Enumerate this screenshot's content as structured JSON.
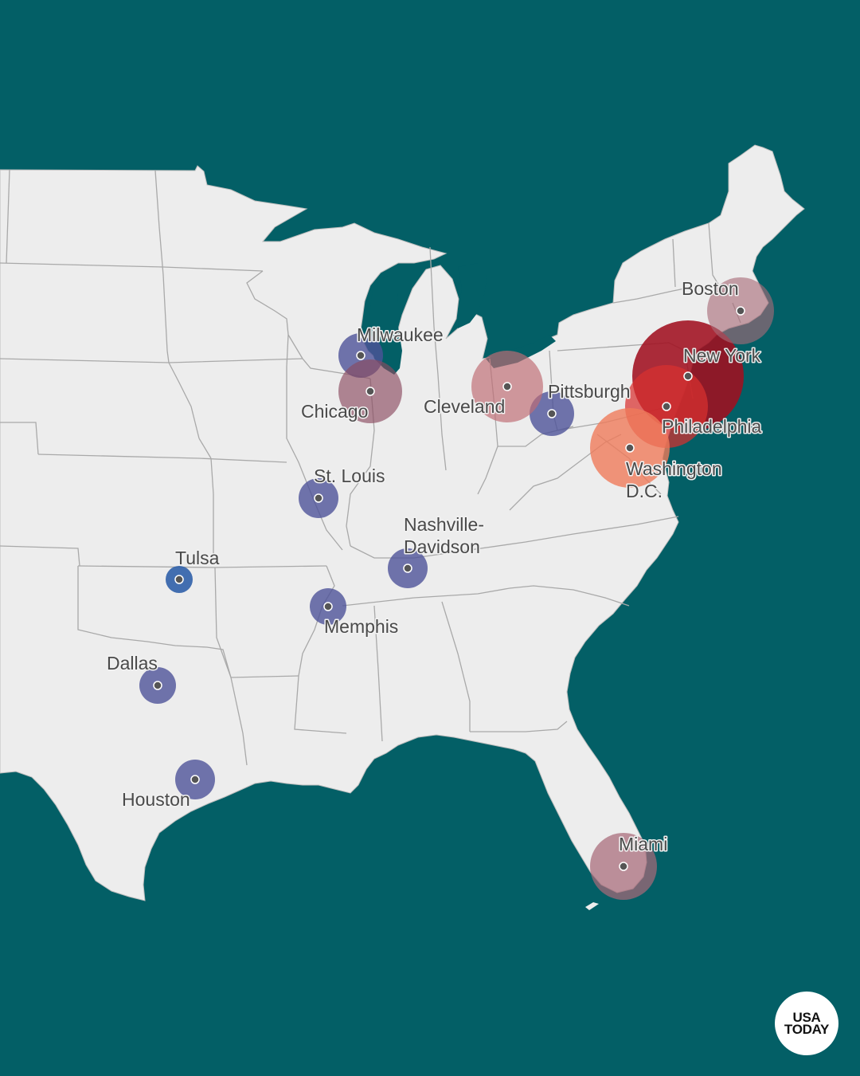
{
  "colors": {
    "water": "#035f66",
    "land": "#ededed",
    "border": "#a9a9a9",
    "blue_marker": "#5a5f9e",
    "mauve_marker": "#a86a78",
    "dark_red_marker": "#a01020",
    "orange_marker": "#ef7a5a"
  },
  "cities": [
    {
      "name": "Boston",
      "tone": "mauve"
    },
    {
      "name": "New York",
      "tone": "dark-red"
    },
    {
      "name": "Philadelphia",
      "tone": "red-orange"
    },
    {
      "name": "Washington D.C.",
      "line1": "Washington",
      "line2": "D.C.",
      "tone": "orange"
    },
    {
      "name": "Pittsburgh",
      "tone": "blue"
    },
    {
      "name": "Cleveland",
      "tone": "mauve"
    },
    {
      "name": "Milwaukee",
      "tone": "blue"
    },
    {
      "name": "Chicago",
      "tone": "mauve"
    },
    {
      "name": "St. Louis",
      "tone": "blue"
    },
    {
      "name": "Nashville-Davidson",
      "line1": "Nashville-",
      "line2": "Davidson",
      "tone": "blue"
    },
    {
      "name": "Tulsa",
      "tone": "blue"
    },
    {
      "name": "Memphis",
      "tone": "blue"
    },
    {
      "name": "Dallas",
      "tone": "blue"
    },
    {
      "name": "Houston",
      "tone": "blue"
    },
    {
      "name": "Miami",
      "tone": "mauve"
    }
  ],
  "logo": {
    "line1": "USA",
    "line2": "TODAY"
  }
}
